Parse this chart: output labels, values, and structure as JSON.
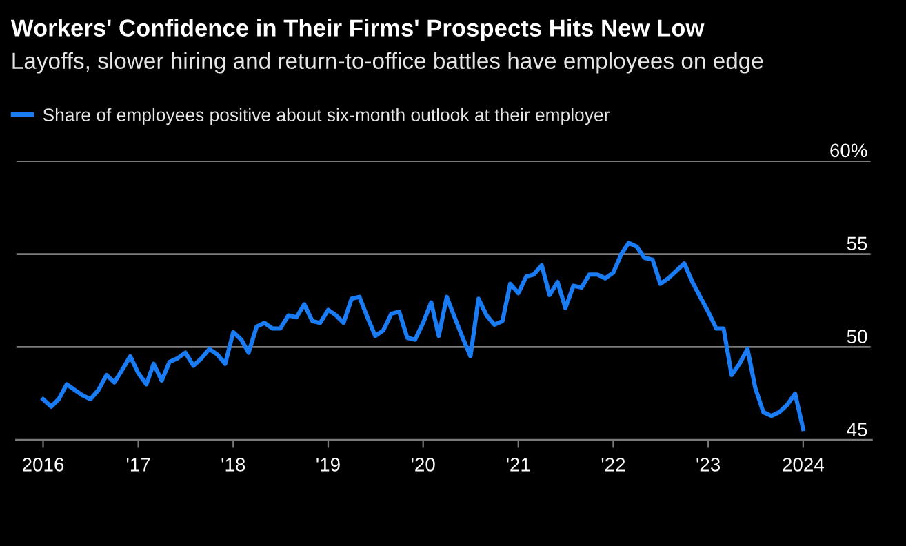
{
  "chart_data": {
    "type": "line",
    "title": "Workers' Confidence in Their Firms' Prospects Hits New Low",
    "subtitle": "Layoffs, slower hiring and return-to-office battles have employees on edge",
    "x": [
      "2016-01",
      "2016-02",
      "2016-03",
      "2016-04",
      "2016-05",
      "2016-06",
      "2016-07",
      "2016-08",
      "2016-09",
      "2016-10",
      "2016-11",
      "2016-12",
      "2017-01",
      "2017-02",
      "2017-03",
      "2017-04",
      "2017-05",
      "2017-06",
      "2017-07",
      "2017-08",
      "2017-09",
      "2017-10",
      "2017-11",
      "2017-12",
      "2018-01",
      "2018-02",
      "2018-03",
      "2018-04",
      "2018-05",
      "2018-06",
      "2018-07",
      "2018-08",
      "2018-09",
      "2018-10",
      "2018-11",
      "2018-12",
      "2019-01",
      "2019-02",
      "2019-03",
      "2019-04",
      "2019-05",
      "2019-06",
      "2019-07",
      "2019-08",
      "2019-09",
      "2019-10",
      "2019-11",
      "2019-12",
      "2020-01",
      "2020-02",
      "2020-03",
      "2020-04",
      "2020-05",
      "2020-06",
      "2020-07",
      "2020-08",
      "2020-09",
      "2020-10",
      "2020-11",
      "2020-12",
      "2021-01",
      "2021-02",
      "2021-03",
      "2021-04",
      "2021-05",
      "2021-06",
      "2021-07",
      "2021-08",
      "2021-09",
      "2021-10",
      "2021-11",
      "2021-12",
      "2022-01",
      "2022-02",
      "2022-03",
      "2022-04",
      "2022-05",
      "2022-06",
      "2022-07",
      "2022-08",
      "2022-09",
      "2022-10",
      "2022-11",
      "2022-12",
      "2023-01",
      "2023-02",
      "2023-03",
      "2023-04",
      "2023-05",
      "2023-06",
      "2023-07",
      "2023-08",
      "2023-09",
      "2023-10",
      "2023-11",
      "2023-12",
      "2024-01"
    ],
    "series": [
      {
        "name": "Share of employees positive about six-month outlook at their employer",
        "color": "#1a7cf5",
        "values": [
          47.2,
          46.8,
          47.2,
          48.0,
          47.7,
          47.4,
          47.2,
          47.7,
          48.5,
          48.1,
          48.8,
          49.5,
          48.6,
          48.0,
          49.1,
          48.2,
          49.2,
          49.4,
          49.7,
          49.0,
          49.4,
          49.9,
          49.6,
          49.1,
          50.8,
          50.4,
          49.7,
          51.1,
          51.3,
          51.0,
          51.0,
          51.7,
          51.6,
          52.3,
          51.4,
          51.3,
          52.0,
          51.7,
          51.3,
          52.6,
          52.7,
          51.6,
          50.6,
          50.9,
          51.8,
          51.9,
          50.5,
          50.4,
          51.3,
          52.4,
          50.6,
          52.7,
          51.6,
          50.5,
          49.5,
          52.6,
          51.7,
          51.2,
          51.4,
          53.4,
          52.9,
          53.8,
          53.9,
          54.4,
          52.8,
          53.5,
          52.1,
          53.3,
          53.2,
          53.9,
          53.9,
          53.7,
          54.0,
          55.0,
          55.6,
          55.4,
          54.8,
          54.7,
          53.4,
          53.7,
          54.1,
          54.5,
          53.5,
          52.7,
          51.9,
          51.0,
          51.0,
          48.5,
          49.1,
          49.9,
          47.8,
          46.5,
          46.3,
          46.5,
          46.9,
          47.5,
          45.6
        ]
      }
    ],
    "xlim": [
      "2015-09-20",
      "2024-09-20"
    ],
    "xticks": [
      {
        "value": "2016",
        "label": "2016"
      },
      {
        "value": "2017",
        "label": "'17"
      },
      {
        "value": "2018",
        "label": "'18"
      },
      {
        "value": "2019",
        "label": "'19"
      },
      {
        "value": "2020",
        "label": "'20"
      },
      {
        "value": "2021",
        "label": "'21"
      },
      {
        "value": "2022",
        "label": "'22"
      },
      {
        "value": "2023",
        "label": "'23"
      },
      {
        "value": "2024",
        "label": "2024"
      }
    ],
    "ylim": [
      45,
      60
    ],
    "yticks": [
      45,
      50,
      55,
      {
        "value": 60,
        "label": "60%"
      }
    ],
    "grid": "y",
    "legend": "top left",
    "marker": "none",
    "line_style": "solid"
  }
}
